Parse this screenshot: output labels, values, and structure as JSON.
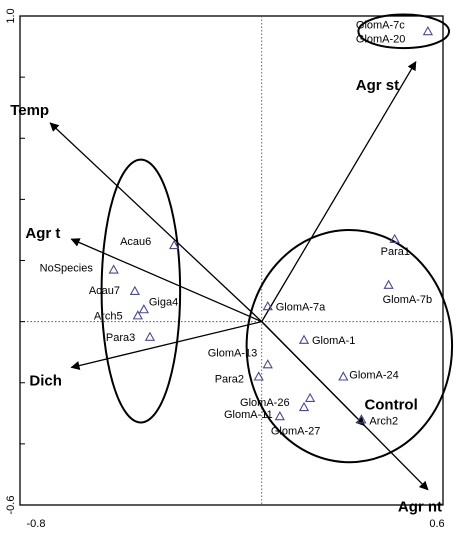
{
  "chart_data": {
    "type": "scatter",
    "title": "",
    "xlabel": "",
    "ylabel": "",
    "xlim": [
      -0.8,
      0.6
    ],
    "ylim": [
      -0.6,
      1.0
    ],
    "x_tick_labels": [
      {
        "value": -0.8,
        "label": "-0.8"
      },
      {
        "value": 0.6,
        "label": "0.6"
      }
    ],
    "y_tick_labels": [
      {
        "value": 1.0,
        "label": "1.0"
      },
      {
        "value": -0.6,
        "label": "-0.6"
      }
    ],
    "y_ticks": [
      1.0,
      0.8,
      0.6,
      0.4,
      0.2,
      0.0,
      -0.2,
      -0.4,
      -0.6
    ],
    "grid": false,
    "zero_lines": true,
    "points": [
      {
        "label": "GlomA-7c",
        "x": 0.55,
        "y": 0.95
      },
      {
        "label": "GlomA-20",
        "x": 0.55,
        "y": 0.95
      },
      {
        "label": "Para1",
        "x": 0.44,
        "y": 0.27
      },
      {
        "label": "GlomA-7b",
        "x": 0.42,
        "y": 0.12
      },
      {
        "label": "GlomA-7a",
        "x": 0.02,
        "y": 0.05
      },
      {
        "label": "GlomA-1",
        "x": 0.14,
        "y": -0.06
      },
      {
        "label": "GlomA-24",
        "x": 0.27,
        "y": -0.18
      },
      {
        "label": "GlomA-13",
        "x": 0.02,
        "y": -0.14
      },
      {
        "label": "Para2",
        "x": -0.01,
        "y": -0.18
      },
      {
        "label": "GlomA-26",
        "x": 0.16,
        "y": -0.25
      },
      {
        "label": "GlomA-11",
        "x": 0.14,
        "y": -0.28
      },
      {
        "label": "GlomA-27",
        "x": 0.06,
        "y": -0.31
      },
      {
        "label": "Arch2",
        "x": 0.33,
        "y": -0.32
      },
      {
        "label": "Acau6",
        "x": -0.29,
        "y": 0.25
      },
      {
        "label": "NoSpecies",
        "x": -0.49,
        "y": 0.17
      },
      {
        "label": "Acau7",
        "x": -0.42,
        "y": 0.1
      },
      {
        "label": "Giga4",
        "x": -0.39,
        "y": 0.04
      },
      {
        "label": "Arch5",
        "x": -0.41,
        "y": 0.02
      },
      {
        "label": "Para3",
        "x": -0.37,
        "y": -0.05
      }
    ],
    "arrows": [
      {
        "label": "Agr st",
        "x": 0.51,
        "y": 0.85
      },
      {
        "label": "Temp",
        "x": -0.7,
        "y": 0.65
      },
      {
        "label": "Agr t",
        "x": -0.63,
        "y": 0.27
      },
      {
        "label": "Dich",
        "x": -0.63,
        "y": -0.15
      },
      {
        "label": "Control",
        "x": 0.34,
        "y": -0.34
      },
      {
        "label": "Agr nt",
        "x": 0.55,
        "y": -0.55
      }
    ],
    "groups": [
      {
        "shape": "ellipse",
        "cx": 0.47,
        "cy": 0.95,
        "rx": 0.15,
        "ry": 0.055
      },
      {
        "shape": "ellipse",
        "cx": -0.4,
        "cy": 0.1,
        "rx": 0.13,
        "ry": 0.43
      },
      {
        "shape": "ellipse",
        "cx": 0.29,
        "cy": -0.08,
        "rx": 0.34,
        "ry": 0.38
      }
    ],
    "marker": "triangle",
    "colors": {
      "marker": "#4a4a8a",
      "arrow": "#000000",
      "axis": "#000000"
    }
  }
}
